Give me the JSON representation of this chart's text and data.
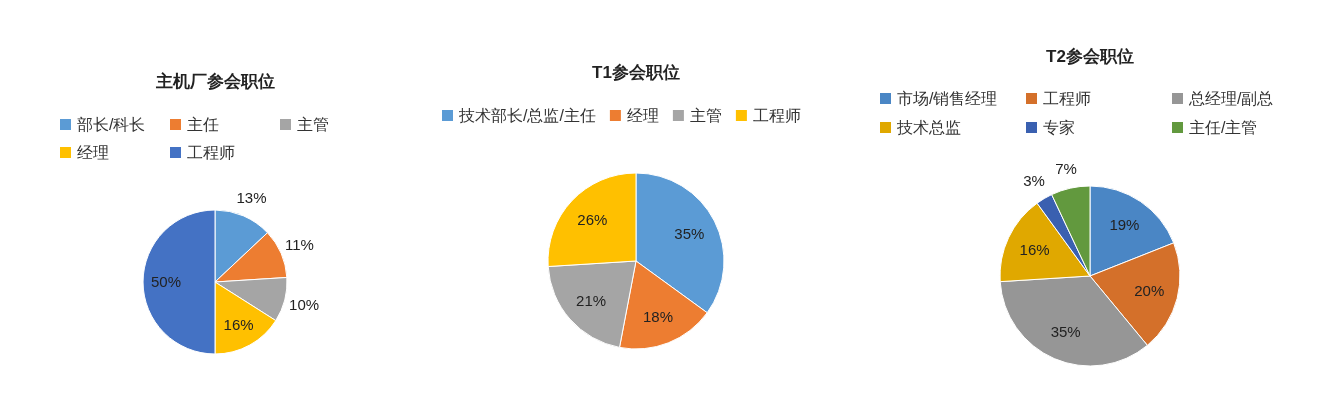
{
  "chart_data": [
    {
      "type": "pie",
      "title": "主机厂参会职位",
      "categories": [
        "部长/科长",
        "主任",
        "主管",
        "经理",
        "工程师"
      ],
      "values": [
        13,
        11,
        10,
        16,
        50
      ],
      "value_labels": [
        "13%",
        "11%",
        "10%",
        "16%",
        "50%"
      ],
      "colors": [
        "#5b9bd5",
        "#ed7d31",
        "#a5a5a5",
        "#ffc000",
        "#4472c4"
      ],
      "legend": "top"
    },
    {
      "type": "pie",
      "title": "T1参会职位",
      "categories": [
        "技术部长/总监/主任",
        "经理",
        "主管",
        "工程师"
      ],
      "values": [
        35,
        18,
        21,
        26
      ],
      "value_labels": [
        "35%",
        "18%",
        "21%",
        "26%"
      ],
      "colors": [
        "#5b9bd5",
        "#ed7d31",
        "#a5a5a5",
        "#ffc000"
      ],
      "legend": "top"
    },
    {
      "type": "pie",
      "title": "T2参会职位",
      "categories": [
        "市场/销售经理",
        "工程师",
        "总经理/副总",
        "技术总监",
        "专家",
        "主任/主管"
      ],
      "values": [
        19,
        20,
        35,
        16,
        3,
        7
      ],
      "value_labels": [
        "19%",
        "20%",
        "35%",
        "16%",
        "3%",
        "7%"
      ],
      "colors": [
        "#4a86c5",
        "#d4702a",
        "#969696",
        "#e0a800",
        "#3a60b0",
        "#62993e"
      ],
      "legend": "top"
    }
  ]
}
